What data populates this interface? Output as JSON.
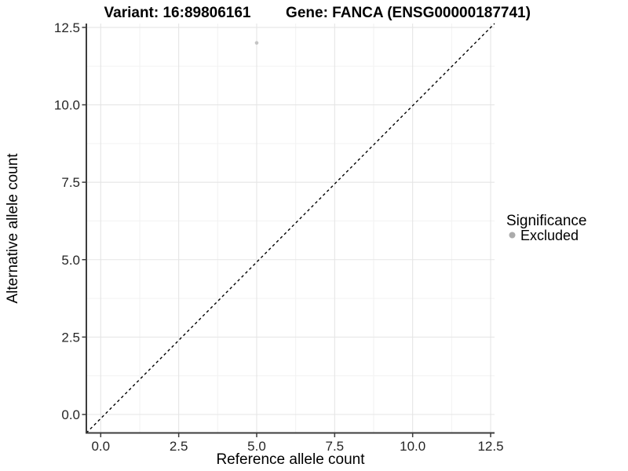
{
  "header": {
    "variant_title": "Variant: 16:89806161",
    "gene_title": "Gene: FANCA (ENSG00000187741)"
  },
  "axes": {
    "x": {
      "label": "Reference allele count",
      "tick_labels": [
        "0.0",
        "2.5",
        "5.0",
        "7.5",
        "10.0",
        "12.5"
      ]
    },
    "y": {
      "label": "Alternative allele count",
      "tick_labels": [
        "0.0",
        "2.5",
        "5.0",
        "7.5",
        "10.0",
        "12.5"
      ]
    }
  },
  "legend": {
    "title": "Significance",
    "items": [
      {
        "label": "Excluded",
        "marker": "dot",
        "color": "#ababab"
      }
    ]
  },
  "chart_data": {
    "type": "scatter",
    "title": "Variant: 16:89806161 | Gene: FANCA (ENSG00000187741)",
    "xlabel": "Reference allele count",
    "ylabel": "Alternative allele count",
    "x_ticks": [
      0,
      2.5,
      5,
      7.5,
      10,
      12.5
    ],
    "y_ticks": [
      0,
      2.5,
      5,
      7.5,
      10,
      12.5
    ],
    "xlim": [
      -0.46,
      12.63
    ],
    "ylim": [
      -0.6,
      12.63
    ],
    "grid": "major and minor gridlines, white background",
    "legend_position": "right",
    "series": [
      {
        "name": "Excluded",
        "color": "#c4c4c4",
        "points": [
          [
            5,
            12
          ]
        ]
      }
    ],
    "reference_line": {
      "type": "identity",
      "equation": "y = x",
      "style": "dashed",
      "color": "#000000"
    }
  },
  "colors": {
    "background": "#ffffff",
    "grid_major": "#e5e5e5",
    "grid_minor": "#f2f2f2",
    "axis_line": "#3c3c3c",
    "point": "#c4c4c4",
    "legend_dot": "#ababab",
    "text": "#000000"
  }
}
